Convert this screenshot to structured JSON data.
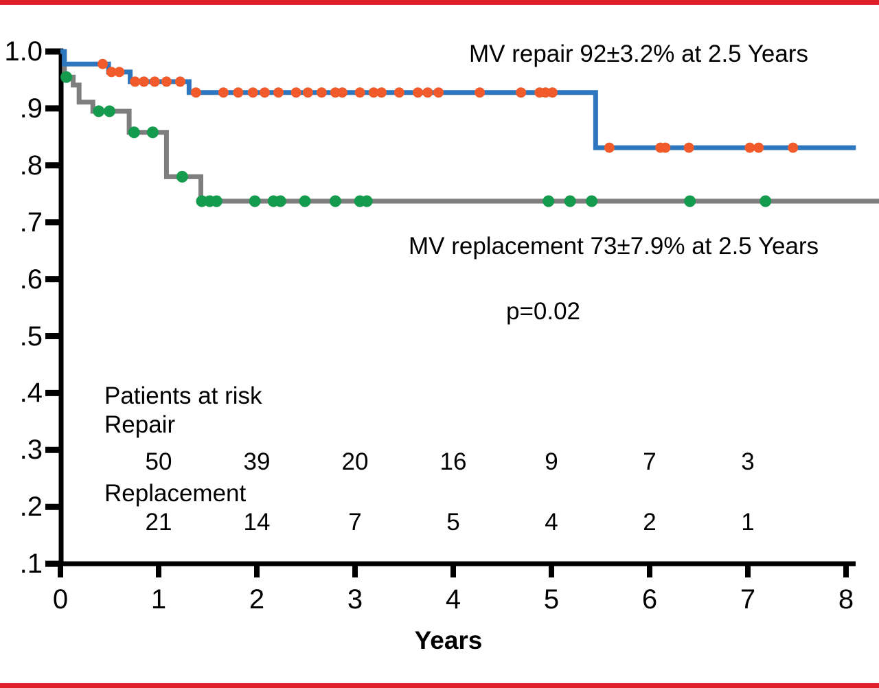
{
  "page": {
    "background": "#ffffff",
    "top_bar_color": "#DF1F2A",
    "bottom_bar_color": "#DF1F2A",
    "axis_color": "#000000"
  },
  "chart_data": {
    "type": "line",
    "subtype": "kaplan-meier-step-curves",
    "title": "",
    "xlabel": "Years",
    "ylabel": "",
    "x_ticks": [
      0,
      1,
      2,
      3,
      4,
      5,
      6,
      7,
      8
    ],
    "xlim": [
      0,
      8.35
    ],
    "y_tick_labels": [
      "1.0",
      ".9",
      ".8",
      ".7",
      ".6",
      ".5",
      ".4",
      ".3",
      ".2",
      ".1"
    ],
    "y_tick_values": [
      1.0,
      0.9,
      0.8,
      0.7,
      0.6,
      0.5,
      0.4,
      0.3,
      0.2,
      0.1
    ],
    "ylim_displayed": [
      0.1,
      1.0
    ],
    "grid": false,
    "legend_position": "none",
    "annotations": {
      "repair_label": "MV repair 92±3.2% at 2.5 Years",
      "replacement_label": "MV replacement 73±7.9% at 2.5 Years",
      "p_value": "p=0.02"
    },
    "series": [
      {
        "name": "MV repair",
        "color": "#2E77BE",
        "censor_color": "#F15B2B",
        "end_t": 8.1,
        "steps": [
          [
            0,
            1.0
          ],
          [
            0.04,
            0.978
          ],
          [
            0.49,
            0.964
          ],
          [
            0.71,
            0.947
          ],
          [
            1.31,
            0.928
          ],
          [
            5.45,
            0.831
          ]
        ],
        "censors": [
          [
            0.43,
            0.978
          ],
          [
            0.52,
            0.964
          ],
          [
            0.6,
            0.964
          ],
          [
            0.76,
            0.947
          ],
          [
            0.85,
            0.947
          ],
          [
            0.96,
            0.947
          ],
          [
            1.08,
            0.947
          ],
          [
            1.22,
            0.947
          ],
          [
            1.38,
            0.928
          ],
          [
            1.66,
            0.928
          ],
          [
            1.81,
            0.928
          ],
          [
            1.96,
            0.928
          ],
          [
            2.08,
            0.928
          ],
          [
            2.22,
            0.928
          ],
          [
            2.4,
            0.928
          ],
          [
            2.52,
            0.928
          ],
          [
            2.66,
            0.928
          ],
          [
            2.8,
            0.928
          ],
          [
            2.87,
            0.928
          ],
          [
            3.05,
            0.928
          ],
          [
            3.19,
            0.928
          ],
          [
            3.27,
            0.928
          ],
          [
            3.45,
            0.928
          ],
          [
            3.64,
            0.928
          ],
          [
            3.74,
            0.928
          ],
          [
            3.85,
            0.928
          ],
          [
            4.27,
            0.928
          ],
          [
            4.69,
            0.928
          ],
          [
            4.88,
            0.928
          ],
          [
            4.94,
            0.928
          ],
          [
            5.01,
            0.928
          ],
          [
            5.59,
            0.831
          ],
          [
            6.11,
            0.831
          ],
          [
            6.16,
            0.831
          ],
          [
            6.4,
            0.831
          ],
          [
            7.02,
            0.831
          ],
          [
            7.11,
            0.831
          ],
          [
            7.46,
            0.831
          ]
        ]
      },
      {
        "name": "MV replacement",
        "color": "#7E7E7E",
        "censor_color": "#149B4D",
        "end_t": 8.34,
        "steps": [
          [
            0,
            1.0
          ],
          [
            0.04,
            0.955
          ],
          [
            0.13,
            0.941
          ],
          [
            0.19,
            0.911
          ],
          [
            0.33,
            0.895
          ],
          [
            0.7,
            0.858
          ],
          [
            1.08,
            0.78
          ],
          [
            1.43,
            0.737
          ]
        ],
        "censors": [
          [
            0.06,
            0.955
          ],
          [
            0.39,
            0.895
          ],
          [
            0.5,
            0.895
          ],
          [
            0.75,
            0.858
          ],
          [
            0.94,
            0.858
          ],
          [
            1.24,
            0.78
          ],
          [
            1.44,
            0.737
          ],
          [
            1.52,
            0.737
          ],
          [
            1.59,
            0.737
          ],
          [
            1.98,
            0.737
          ],
          [
            2.17,
            0.737
          ],
          [
            2.24,
            0.737
          ],
          [
            2.49,
            0.737
          ],
          [
            2.8,
            0.737
          ],
          [
            3.05,
            0.737
          ],
          [
            3.12,
            0.737
          ],
          [
            4.97,
            0.737
          ],
          [
            5.19,
            0.737
          ],
          [
            5.41,
            0.737
          ],
          [
            6.41,
            0.737
          ],
          [
            7.18,
            0.737
          ]
        ]
      }
    ],
    "risk_table": {
      "title": "Patients at risk",
      "years": [
        1,
        2,
        3,
        4,
        5,
        6,
        7
      ],
      "rows": [
        {
          "label": "Repair",
          "counts": [
            "50",
            "39",
            "20",
            "16",
            "9",
            "7",
            "3"
          ]
        },
        {
          "label": "Replacement",
          "counts": [
            "21",
            "14",
            "7",
            "5",
            "4",
            "2",
            "1"
          ]
        }
      ]
    }
  }
}
